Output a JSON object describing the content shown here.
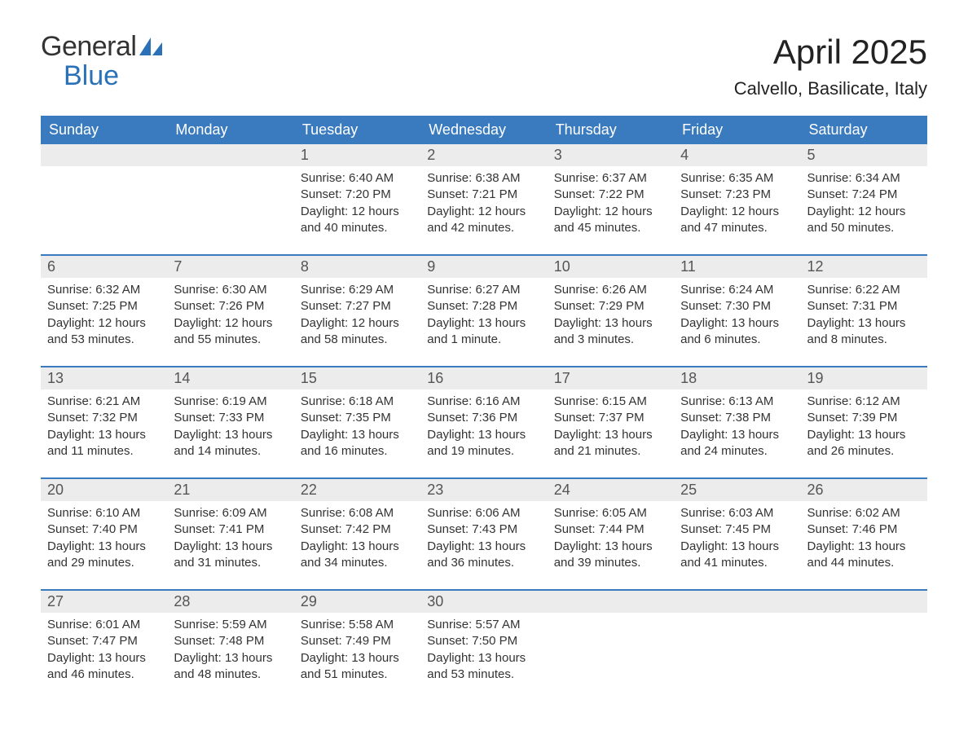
{
  "brand": {
    "line1": "General",
    "line2": "Blue",
    "icon_color": "#2a71b8"
  },
  "title": "April 2025",
  "location": "Calvello, Basilicate, Italy",
  "colors": {
    "header_bg": "#3a7bbf",
    "header_text": "#ffffff",
    "daynum_bg": "#ececec",
    "body_text": "#333333",
    "week_border": "#3a7bbf"
  },
  "daysOfWeek": [
    "Sunday",
    "Monday",
    "Tuesday",
    "Wednesday",
    "Thursday",
    "Friday",
    "Saturday"
  ],
  "weeks": [
    [
      {
        "num": "",
        "sunrise": "",
        "sunset": "",
        "daylight": ""
      },
      {
        "num": "",
        "sunrise": "",
        "sunset": "",
        "daylight": ""
      },
      {
        "num": "1",
        "sunrise": "Sunrise: 6:40 AM",
        "sunset": "Sunset: 7:20 PM",
        "daylight": "Daylight: 12 hours and 40 minutes."
      },
      {
        "num": "2",
        "sunrise": "Sunrise: 6:38 AM",
        "sunset": "Sunset: 7:21 PM",
        "daylight": "Daylight: 12 hours and 42 minutes."
      },
      {
        "num": "3",
        "sunrise": "Sunrise: 6:37 AM",
        "sunset": "Sunset: 7:22 PM",
        "daylight": "Daylight: 12 hours and 45 minutes."
      },
      {
        "num": "4",
        "sunrise": "Sunrise: 6:35 AM",
        "sunset": "Sunset: 7:23 PM",
        "daylight": "Daylight: 12 hours and 47 minutes."
      },
      {
        "num": "5",
        "sunrise": "Sunrise: 6:34 AM",
        "sunset": "Sunset: 7:24 PM",
        "daylight": "Daylight: 12 hours and 50 minutes."
      }
    ],
    [
      {
        "num": "6",
        "sunrise": "Sunrise: 6:32 AM",
        "sunset": "Sunset: 7:25 PM",
        "daylight": "Daylight: 12 hours and 53 minutes."
      },
      {
        "num": "7",
        "sunrise": "Sunrise: 6:30 AM",
        "sunset": "Sunset: 7:26 PM",
        "daylight": "Daylight: 12 hours and 55 minutes."
      },
      {
        "num": "8",
        "sunrise": "Sunrise: 6:29 AM",
        "sunset": "Sunset: 7:27 PM",
        "daylight": "Daylight: 12 hours and 58 minutes."
      },
      {
        "num": "9",
        "sunrise": "Sunrise: 6:27 AM",
        "sunset": "Sunset: 7:28 PM",
        "daylight": "Daylight: 13 hours and 1 minute."
      },
      {
        "num": "10",
        "sunrise": "Sunrise: 6:26 AM",
        "sunset": "Sunset: 7:29 PM",
        "daylight": "Daylight: 13 hours and 3 minutes."
      },
      {
        "num": "11",
        "sunrise": "Sunrise: 6:24 AM",
        "sunset": "Sunset: 7:30 PM",
        "daylight": "Daylight: 13 hours and 6 minutes."
      },
      {
        "num": "12",
        "sunrise": "Sunrise: 6:22 AM",
        "sunset": "Sunset: 7:31 PM",
        "daylight": "Daylight: 13 hours and 8 minutes."
      }
    ],
    [
      {
        "num": "13",
        "sunrise": "Sunrise: 6:21 AM",
        "sunset": "Sunset: 7:32 PM",
        "daylight": "Daylight: 13 hours and 11 minutes."
      },
      {
        "num": "14",
        "sunrise": "Sunrise: 6:19 AM",
        "sunset": "Sunset: 7:33 PM",
        "daylight": "Daylight: 13 hours and 14 minutes."
      },
      {
        "num": "15",
        "sunrise": "Sunrise: 6:18 AM",
        "sunset": "Sunset: 7:35 PM",
        "daylight": "Daylight: 13 hours and 16 minutes."
      },
      {
        "num": "16",
        "sunrise": "Sunrise: 6:16 AM",
        "sunset": "Sunset: 7:36 PM",
        "daylight": "Daylight: 13 hours and 19 minutes."
      },
      {
        "num": "17",
        "sunrise": "Sunrise: 6:15 AM",
        "sunset": "Sunset: 7:37 PM",
        "daylight": "Daylight: 13 hours and 21 minutes."
      },
      {
        "num": "18",
        "sunrise": "Sunrise: 6:13 AM",
        "sunset": "Sunset: 7:38 PM",
        "daylight": "Daylight: 13 hours and 24 minutes."
      },
      {
        "num": "19",
        "sunrise": "Sunrise: 6:12 AM",
        "sunset": "Sunset: 7:39 PM",
        "daylight": "Daylight: 13 hours and 26 minutes."
      }
    ],
    [
      {
        "num": "20",
        "sunrise": "Sunrise: 6:10 AM",
        "sunset": "Sunset: 7:40 PM",
        "daylight": "Daylight: 13 hours and 29 minutes."
      },
      {
        "num": "21",
        "sunrise": "Sunrise: 6:09 AM",
        "sunset": "Sunset: 7:41 PM",
        "daylight": "Daylight: 13 hours and 31 minutes."
      },
      {
        "num": "22",
        "sunrise": "Sunrise: 6:08 AM",
        "sunset": "Sunset: 7:42 PM",
        "daylight": "Daylight: 13 hours and 34 minutes."
      },
      {
        "num": "23",
        "sunrise": "Sunrise: 6:06 AM",
        "sunset": "Sunset: 7:43 PM",
        "daylight": "Daylight: 13 hours and 36 minutes."
      },
      {
        "num": "24",
        "sunrise": "Sunrise: 6:05 AM",
        "sunset": "Sunset: 7:44 PM",
        "daylight": "Daylight: 13 hours and 39 minutes."
      },
      {
        "num": "25",
        "sunrise": "Sunrise: 6:03 AM",
        "sunset": "Sunset: 7:45 PM",
        "daylight": "Daylight: 13 hours and 41 minutes."
      },
      {
        "num": "26",
        "sunrise": "Sunrise: 6:02 AM",
        "sunset": "Sunset: 7:46 PM",
        "daylight": "Daylight: 13 hours and 44 minutes."
      }
    ],
    [
      {
        "num": "27",
        "sunrise": "Sunrise: 6:01 AM",
        "sunset": "Sunset: 7:47 PM",
        "daylight": "Daylight: 13 hours and 46 minutes."
      },
      {
        "num": "28",
        "sunrise": "Sunrise: 5:59 AM",
        "sunset": "Sunset: 7:48 PM",
        "daylight": "Daylight: 13 hours and 48 minutes."
      },
      {
        "num": "29",
        "sunrise": "Sunrise: 5:58 AM",
        "sunset": "Sunset: 7:49 PM",
        "daylight": "Daylight: 13 hours and 51 minutes."
      },
      {
        "num": "30",
        "sunrise": "Sunrise: 5:57 AM",
        "sunset": "Sunset: 7:50 PM",
        "daylight": "Daylight: 13 hours and 53 minutes."
      },
      {
        "num": "",
        "sunrise": "",
        "sunset": "",
        "daylight": ""
      },
      {
        "num": "",
        "sunrise": "",
        "sunset": "",
        "daylight": ""
      },
      {
        "num": "",
        "sunrise": "",
        "sunset": "",
        "daylight": ""
      }
    ]
  ]
}
